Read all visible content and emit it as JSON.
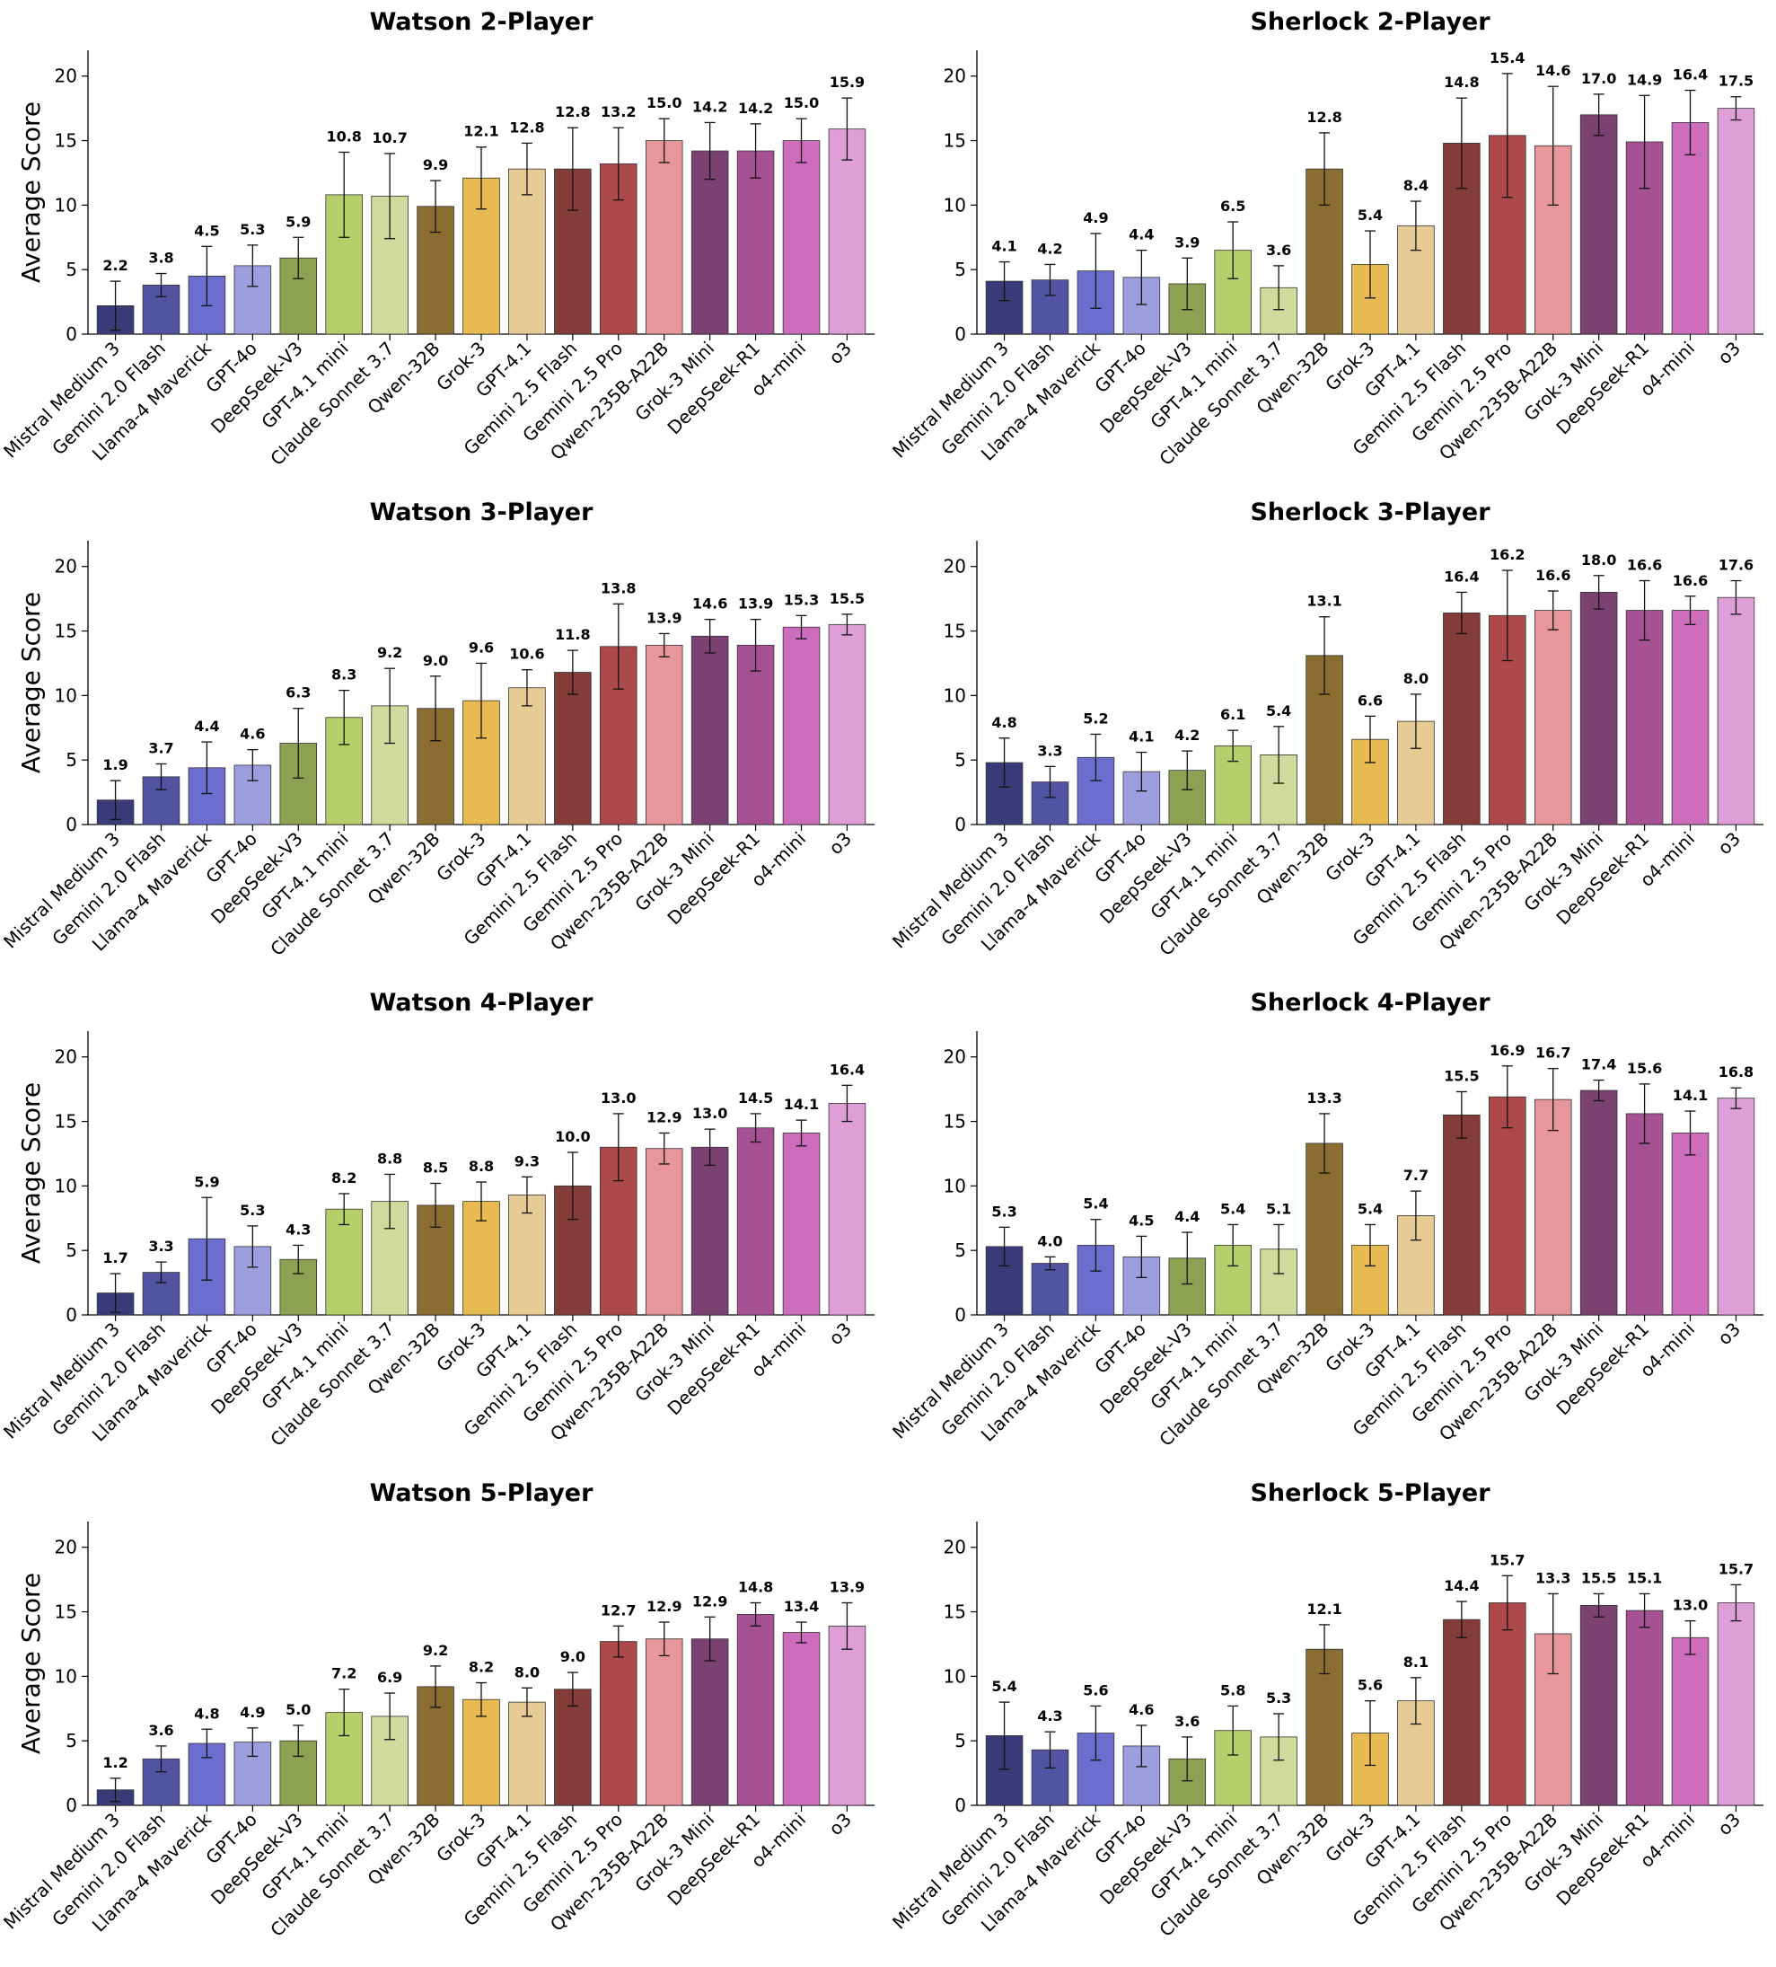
{
  "categories": [
    "Mistral Medium 3",
    "Gemini 2.0 Flash",
    "Llama-4 Maverick",
    "GPT-4o",
    "DeepSeek-V3",
    "GPT-4.1 mini",
    "Claude Sonnet 3.7",
    "Qwen-32B",
    "Grok-3",
    "GPT-4.1",
    "Gemini 2.5 Flash",
    "Gemini 2.5 Pro",
    "Qwen-235B-A22B",
    "Grok-3 Mini",
    "DeepSeek-R1",
    "o4-mini",
    "o3"
  ],
  "colors": [
    "#393b79",
    "#5254a3",
    "#6b6ecf",
    "#9c9ede",
    "#8ca252",
    "#b5cf6b",
    "#cedb9c",
    "#8c6d31",
    "#e7ba52",
    "#e7cb94",
    "#843c39",
    "#ad494a",
    "#e7969c",
    "#7b4173",
    "#a55194",
    "#ce6dbd",
    "#de9ed6"
  ],
  "chart_data": [
    {
      "type": "bar",
      "title": "Watson 2-Player",
      "ylabel": "Average Score",
      "ylim": [
        0,
        22
      ],
      "yticks": [
        0,
        5,
        10,
        15,
        20
      ],
      "values": [
        2.2,
        3.8,
        4.5,
        5.3,
        5.9,
        10.8,
        10.7,
        9.9,
        12.1,
        12.8,
        12.8,
        13.2,
        15.0,
        14.2,
        14.2,
        15.0,
        15.9
      ],
      "errors": [
        1.9,
        0.9,
        2.3,
        1.6,
        1.6,
        3.3,
        3.3,
        2.0,
        2.4,
        2.0,
        3.2,
        2.8,
        1.7,
        2.2,
        2.1,
        1.7,
        2.4
      ]
    },
    {
      "type": "bar",
      "title": "Sherlock 2-Player",
      "ylabel": "",
      "ylim": [
        0,
        22
      ],
      "yticks": [
        0,
        5,
        10,
        15,
        20
      ],
      "values": [
        4.1,
        4.2,
        4.9,
        4.4,
        3.9,
        6.5,
        3.6,
        12.8,
        5.4,
        8.4,
        14.8,
        15.4,
        14.6,
        17.0,
        14.9,
        16.4,
        17.5
      ],
      "errors": [
        1.5,
        1.2,
        2.9,
        2.1,
        2.0,
        2.2,
        1.7,
        2.8,
        2.6,
        1.9,
        3.5,
        4.8,
        4.6,
        1.6,
        3.6,
        2.5,
        0.9
      ]
    },
    {
      "type": "bar",
      "title": "Watson 3-Player",
      "ylabel": "Average Score",
      "ylim": [
        0,
        22
      ],
      "yticks": [
        0,
        5,
        10,
        15,
        20
      ],
      "values": [
        1.9,
        3.7,
        4.4,
        4.6,
        6.3,
        8.3,
        9.2,
        9.0,
        9.6,
        10.6,
        11.8,
        13.8,
        13.9,
        14.6,
        13.9,
        15.3,
        15.5
      ],
      "errors": [
        1.5,
        1.0,
        2.0,
        1.2,
        2.7,
        2.1,
        2.9,
        2.5,
        2.9,
        1.4,
        1.7,
        3.3,
        0.9,
        1.3,
        2.0,
        0.9,
        0.8
      ]
    },
    {
      "type": "bar",
      "title": "Sherlock 3-Player",
      "ylabel": "",
      "ylim": [
        0,
        22
      ],
      "yticks": [
        0,
        5,
        10,
        15,
        20
      ],
      "values": [
        4.8,
        3.3,
        5.2,
        4.1,
        4.2,
        6.1,
        5.4,
        13.1,
        6.6,
        8.0,
        16.4,
        16.2,
        16.6,
        18.0,
        16.6,
        16.6,
        17.6
      ],
      "errors": [
        1.9,
        1.2,
        1.8,
        1.5,
        1.5,
        1.2,
        2.2,
        3.0,
        1.8,
        2.1,
        1.6,
        3.5,
        1.5,
        1.3,
        2.3,
        1.1,
        1.3
      ]
    },
    {
      "type": "bar",
      "title": "Watson 4-Player",
      "ylabel": "Average Score",
      "ylim": [
        0,
        22
      ],
      "yticks": [
        0,
        5,
        10,
        15,
        20
      ],
      "values": [
        1.7,
        3.3,
        5.9,
        5.3,
        4.3,
        8.2,
        8.8,
        8.5,
        8.8,
        9.3,
        10.0,
        13.0,
        12.9,
        13.0,
        14.5,
        14.1,
        16.4
      ],
      "errors": [
        1.5,
        0.8,
        3.2,
        1.6,
        1.1,
        1.2,
        2.1,
        1.7,
        1.5,
        1.4,
        2.6,
        2.6,
        1.2,
        1.4,
        1.1,
        1.0,
        1.4
      ]
    },
    {
      "type": "bar",
      "title": "Sherlock 4-Player",
      "ylabel": "",
      "ylim": [
        0,
        22
      ],
      "yticks": [
        0,
        5,
        10,
        15,
        20
      ],
      "values": [
        5.3,
        4.0,
        5.4,
        4.5,
        4.4,
        5.4,
        5.1,
        13.3,
        5.4,
        7.7,
        15.5,
        16.9,
        16.7,
        17.4,
        15.6,
        14.1,
        16.8
      ],
      "errors": [
        1.5,
        0.5,
        2.0,
        1.6,
        2.0,
        1.6,
        1.9,
        2.3,
        1.6,
        1.9,
        1.8,
        2.4,
        2.4,
        0.8,
        2.3,
        1.7,
        0.8
      ]
    },
    {
      "type": "bar",
      "title": "Watson 5-Player",
      "ylabel": "Average Score",
      "ylim": [
        0,
        22
      ],
      "yticks": [
        0,
        5,
        10,
        15,
        20
      ],
      "values": [
        1.2,
        3.6,
        4.8,
        4.9,
        5.0,
        7.2,
        6.9,
        9.2,
        8.2,
        8.0,
        9.0,
        12.7,
        12.9,
        12.9,
        14.8,
        13.4,
        13.9
      ],
      "errors": [
        0.9,
        1.0,
        1.1,
        1.1,
        1.2,
        1.8,
        1.8,
        1.6,
        1.3,
        1.1,
        1.3,
        1.2,
        1.3,
        1.7,
        0.9,
        0.8,
        1.8
      ]
    },
    {
      "type": "bar",
      "title": "Sherlock 5-Player",
      "ylabel": "",
      "ylim": [
        0,
        22
      ],
      "yticks": [
        0,
        5,
        10,
        15,
        20
      ],
      "values": [
        5.4,
        4.3,
        5.6,
        4.6,
        3.6,
        5.8,
        5.3,
        12.1,
        5.6,
        8.1,
        14.4,
        15.7,
        13.3,
        15.5,
        15.1,
        13.0,
        15.7
      ],
      "errors": [
        2.6,
        1.4,
        2.1,
        1.6,
        1.7,
        1.9,
        1.8,
        1.9,
        2.5,
        1.8,
        1.4,
        2.1,
        3.1,
        0.9,
        1.3,
        1.3,
        1.4
      ]
    }
  ]
}
